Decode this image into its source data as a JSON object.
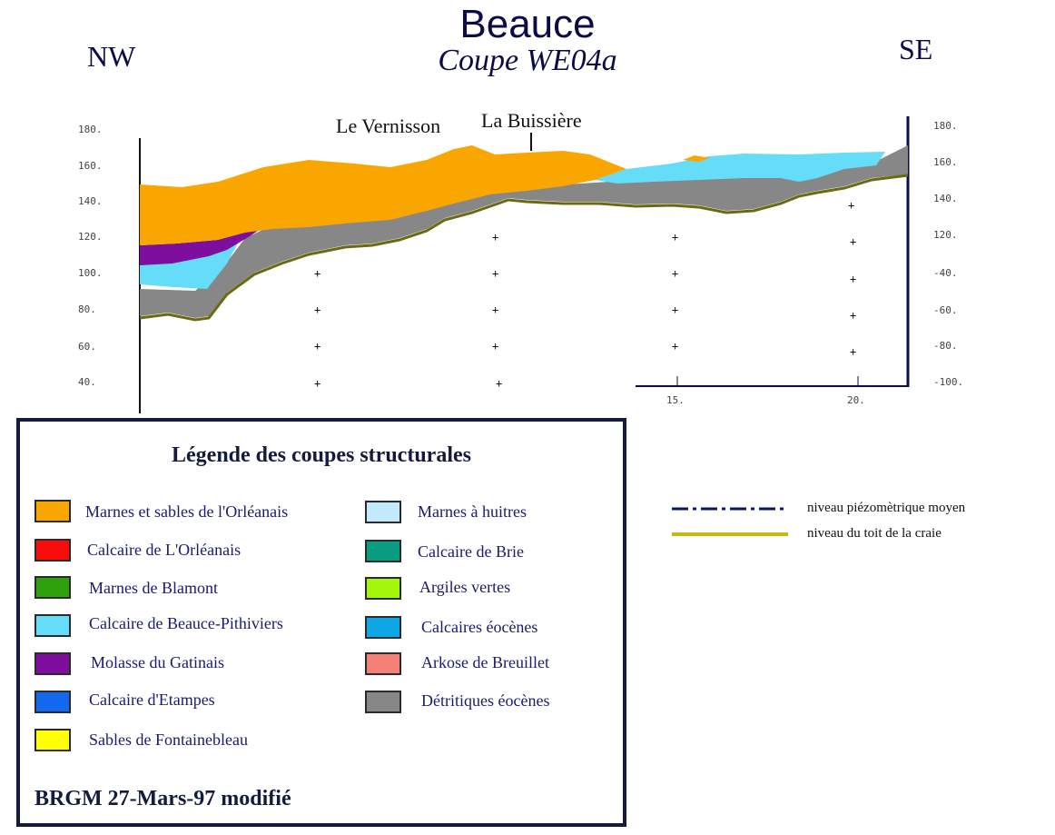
{
  "header": {
    "title": "Beauce",
    "subtitle": "Coupe WE04a",
    "left_dir": "NW",
    "right_dir": "SE"
  },
  "places": {
    "vernisson": "Le Vernisson",
    "buissiere": "La Buissière"
  },
  "axes": {
    "left_ticks": [
      "180.",
      "160.",
      "140.",
      "120.",
      "100.",
      "80.",
      "60.",
      "40."
    ],
    "right_ticks": [
      "180.",
      "160.",
      "140.",
      "120.",
      "-40.",
      "-60.",
      "-80.",
      "-100."
    ],
    "bottom_ticks": [
      "15.",
      "20."
    ]
  },
  "legend": {
    "title": "Légende des coupes structurales",
    "left": [
      {
        "label": "Marnes et sables de l'Orléanais",
        "color": "#f9a600"
      },
      {
        "label": "Calcaire de L'Orléanais",
        "color": "#f80c0c"
      },
      {
        "label": "Marnes de Blamont",
        "color": "#2ea10c"
      },
      {
        "label": "Calcaire de Beauce-Pithiviers",
        "color": "#66ddf8"
      },
      {
        "label": "Molasse du Gatinais",
        "color": "#7e0f9e"
      },
      {
        "label": "Calcaire d'Etampes",
        "color": "#1468ee"
      },
      {
        "label": "Sables de Fontainebleau",
        "color": "#ffff06"
      }
    ],
    "right": [
      {
        "label": "Marnes à huitres",
        "color": "#c2eafc"
      },
      {
        "label": "Calcaire de Brie",
        "color": "#0a9c80"
      },
      {
        "label": "Argiles vertes",
        "color": "#a4f80c"
      },
      {
        "label": "Calcaires éocènes",
        "color": "#0ea7e6"
      },
      {
        "label": "Arkose de Breuillet",
        "color": "#f58078"
      },
      {
        "label": "Détritiques éocènes",
        "color": "#878787"
      }
    ],
    "footer": "BRGM 27-Mars-97 modifié"
  },
  "lines": {
    "piezo": {
      "label": "niveau piézomètrique moyen",
      "color": "#0b1570"
    },
    "craie": {
      "label": "niveau du toit de la craie",
      "color": "#c9b90f"
    }
  }
}
